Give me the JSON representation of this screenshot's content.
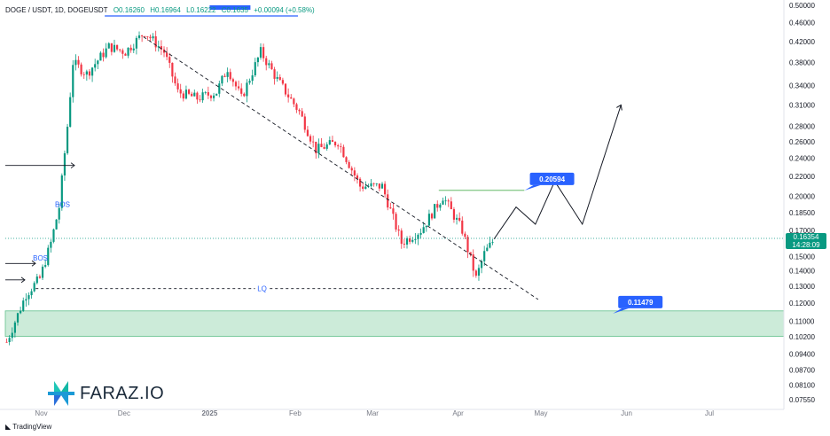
{
  "header": {
    "symbol": "DOGE / USDT, 1D, DOGEUSDT",
    "open": "O0.16260",
    "high": "H0.16964",
    "low": "L0.16222",
    "close": "C0.1635",
    "change": "+0.00094 (+0.58%)"
  },
  "brand": {
    "logo_text": "FARAZ.IO",
    "tv_text": "TradingView"
  },
  "current_price": {
    "value": "0.16354",
    "countdown": "14:28:09"
  },
  "chart_data": {
    "type": "candlestick",
    "title": "DOGE / USDT, 1D, DOGEUSDT",
    "y_scale": "log",
    "ylim": [
      0.072,
      0.5
    ],
    "y_ticks": [
      "0.50000",
      "0.46000",
      "0.42000",
      "0.38000",
      "0.34000",
      "0.31000",
      "0.28000",
      "0.26000",
      "0.24000",
      "0.22000",
      "0.20000",
      "0.18500",
      "0.17000",
      "0.15000",
      "0.14000",
      "0.13000",
      "0.12000",
      "0.11000",
      "0.10200",
      "0.09400",
      "0.08700",
      "0.08100",
      "0.07550"
    ],
    "x_ticks": [
      "Nov",
      "Dec",
      "2025",
      "Feb",
      "Mar",
      "Apr",
      "May",
      "Jun",
      "Jul"
    ],
    "x_start": "2024-10-19",
    "x_end": "2025-07-28",
    "annotations": {
      "bos_labels": [
        "BOS",
        "BOS"
      ],
      "lq_label": "LQ",
      "target_high": "0.20594",
      "target_low": "0.11479",
      "last_price": "0.16354"
    },
    "support_zone": [
      0.1022,
      0.1155
    ],
    "liquidity_level": 0.1285,
    "target_level": 0.2059,
    "current_price_line": 0.1635,
    "trendline": [
      {
        "date": "2024-12-08",
        "price": 0.43
      },
      {
        "date": "2025-04-30",
        "price": 0.122
      }
    ],
    "projection_path": [
      {
        "date": "2025-04-14",
        "price": 0.163
      },
      {
        "date": "2025-04-22",
        "price": 0.19
      },
      {
        "date": "2025-04-29",
        "price": 0.175
      },
      {
        "date": "2025-05-06",
        "price": 0.215
      },
      {
        "date": "2025-05-16",
        "price": 0.175
      },
      {
        "date": "2025-05-30",
        "price": 0.31
      }
    ],
    "anchor_points": [
      {
        "date": "2024-10-19",
        "price": 0.0995
      },
      {
        "date": "2024-10-26",
        "price": 0.125
      },
      {
        "date": "2024-10-31",
        "price": 0.135
      },
      {
        "date": "2024-11-04",
        "price": 0.16
      },
      {
        "date": "2024-11-07",
        "price": 0.19
      },
      {
        "date": "2024-11-10",
        "price": 0.28
      },
      {
        "date": "2024-11-12",
        "price": 0.38
      },
      {
        "date": "2024-11-17",
        "price": 0.36
      },
      {
        "date": "2024-11-25",
        "price": 0.41
      },
      {
        "date": "2024-12-01",
        "price": 0.4
      },
      {
        "date": "2024-12-08",
        "price": 0.44
      },
      {
        "date": "2024-12-15",
        "price": 0.4
      },
      {
        "date": "2024-12-20",
        "price": 0.33
      },
      {
        "date": "2024-12-27",
        "price": 0.32
      },
      {
        "date": "2025-01-03",
        "price": 0.33
      },
      {
        "date": "2025-01-07",
        "price": 0.37
      },
      {
        "date": "2025-01-12",
        "price": 0.32
      },
      {
        "date": "2025-01-19",
        "price": 0.4
      },
      {
        "date": "2025-01-25",
        "price": 0.35
      },
      {
        "date": "2025-02-02",
        "price": 0.3
      },
      {
        "date": "2025-02-08",
        "price": 0.25
      },
      {
        "date": "2025-02-16",
        "price": 0.26
      },
      {
        "date": "2025-02-24",
        "price": 0.21
      },
      {
        "date": "2025-03-04",
        "price": 0.21
      },
      {
        "date": "2025-03-11",
        "price": 0.16
      },
      {
        "date": "2025-03-18",
        "price": 0.17
      },
      {
        "date": "2025-03-26",
        "price": 0.2
      },
      {
        "date": "2025-04-02",
        "price": 0.17
      },
      {
        "date": "2025-04-07",
        "price": 0.135
      },
      {
        "date": "2025-04-10",
        "price": 0.152
      },
      {
        "date": "2025-04-14",
        "price": 0.164
      }
    ]
  },
  "colors": {
    "up": "#089981",
    "down": "#f23645",
    "accent": "#2962ff",
    "zone": "#ccebd9"
  }
}
